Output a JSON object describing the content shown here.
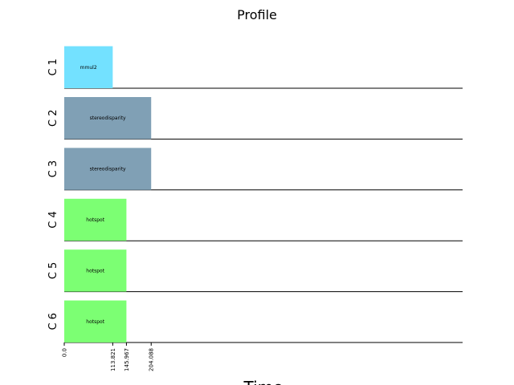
{
  "chart_data": {
    "type": "bar",
    "orientation": "horizontal-gantt",
    "title": "Profile",
    "xlabel": "Time",
    "ylabel": "",
    "xlim": [
      0,
      800
    ],
    "rows": [
      "C 1",
      "C 2",
      "C 3",
      "C 4",
      "C 5",
      "C 6"
    ],
    "tasks": [
      {
        "row": "C 1",
        "label": "mmul2",
        "start": 0,
        "end": 113.821,
        "color": "#73e1ff"
      },
      {
        "row": "C 2",
        "label": "stereodisparity",
        "start": 0,
        "end": 204.088,
        "color": "#80a0b5"
      },
      {
        "row": "C 3",
        "label": "stereodisparity",
        "start": 0,
        "end": 204.088,
        "color": "#80a0b5"
      },
      {
        "row": "C 4",
        "label": "hotspot",
        "start": 0,
        "end": 145.967,
        "color": "#7cff73"
      },
      {
        "row": "C 5",
        "label": "hotspot",
        "start": 0,
        "end": 145.967,
        "color": "#7cff73"
      },
      {
        "row": "C 6",
        "label": "hotspot",
        "start": 0,
        "end": 145.967,
        "color": "#7cff73"
      }
    ],
    "xticks": [
      {
        "value": 0,
        "label": "0.0"
      },
      {
        "value": 113.821,
        "label": "113.821"
      },
      {
        "value": 145.967,
        "label": "145.967"
      },
      {
        "value": 204.088,
        "label": "204.088"
      }
    ],
    "grid": false,
    "legend": "none"
  }
}
